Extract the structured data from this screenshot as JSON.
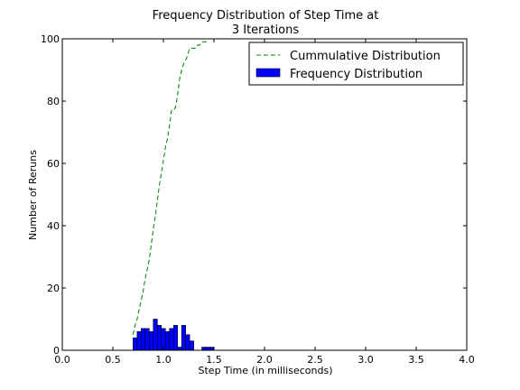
{
  "chart_data": {
    "type": "bar",
    "title_lines": [
      "Frequency Distribution of Step Time at",
      "3 Iterations"
    ],
    "xlabel": "Step Time (in milliseconds)",
    "ylabel": "Number of Reruns",
    "xlim": [
      0.0,
      4.0
    ],
    "ylim": [
      0,
      100
    ],
    "xticks": [
      "0.0",
      "0.5",
      "1.0",
      "1.5",
      "2.0",
      "2.5",
      "3.0",
      "3.5",
      "4.0"
    ],
    "yticks": [
      "0",
      "20",
      "40",
      "60",
      "80",
      "100"
    ],
    "grid": false,
    "legend_position": "top-right",
    "colors": {
      "frequency": "#0000ff",
      "cumulative": "#008000"
    },
    "series": [
      {
        "name": "Cummulative Distribution",
        "type": "line",
        "style": "dashed",
        "x": [
          0.7,
          0.72,
          0.74,
          0.76,
          0.78,
          0.8,
          0.82,
          0.84,
          0.86,
          0.88,
          0.9,
          0.92,
          0.94,
          0.96,
          0.98,
          1.0,
          1.02,
          1.04,
          1.06,
          1.08,
          1.1,
          1.12,
          1.14,
          1.16,
          1.18,
          1.2,
          1.22,
          1.24,
          1.26,
          1.28,
          1.3,
          1.32,
          1.34,
          1.36,
          1.38,
          1.4,
          1.42,
          1.44,
          1.46,
          1.48,
          1.5
        ],
        "y": [
          5,
          8,
          10,
          13,
          16,
          19,
          23,
          26,
          29,
          34,
          39,
          43,
          48,
          53,
          57,
          61,
          65,
          68,
          72,
          77,
          77,
          78,
          82,
          87,
          90,
          92,
          93,
          95,
          97,
          97,
          97,
          97,
          98,
          98,
          99,
          99,
          99,
          100,
          100,
          100,
          100
        ]
      },
      {
        "name": "Frequency Distribution",
        "type": "bar",
        "bin_width": 0.04,
        "bin_starts": [
          0.7,
          0.74,
          0.78,
          0.82,
          0.86,
          0.9,
          0.94,
          0.98,
          1.02,
          1.06,
          1.1,
          1.14,
          1.18,
          1.22,
          1.26,
          1.3,
          1.34,
          1.38,
          1.42,
          1.46
        ],
        "values": [
          4,
          6,
          7,
          7,
          6,
          10,
          8,
          7,
          6,
          7,
          8,
          1,
          8,
          5,
          3,
          0,
          0,
          1,
          1,
          1
        ]
      }
    ]
  }
}
